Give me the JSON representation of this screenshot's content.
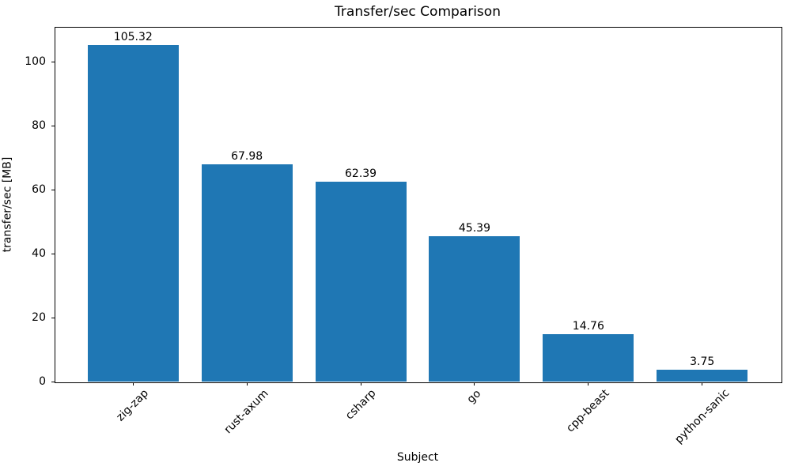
{
  "chart_data": {
    "type": "bar",
    "title": "Transfer/sec Comparison",
    "xlabel": "Subject",
    "ylabel": "transfer/sec [MB]",
    "categories": [
      "zig-zap",
      "rust-axum",
      "csharp",
      "go",
      "cpp-beast",
      "python-sanic"
    ],
    "values": [
      105.32,
      67.98,
      62.39,
      45.39,
      14.76,
      3.75
    ],
    "value_labels": [
      "105.32",
      "67.98",
      "62.39",
      "45.39",
      "14.76",
      "3.75"
    ],
    "yticks": [
      0,
      20,
      40,
      60,
      80,
      100
    ],
    "ytick_labels": [
      "0",
      "20",
      "40",
      "60",
      "80",
      "100"
    ],
    "ylim": [
      0,
      110.9
    ],
    "xtick_rotation_deg": 45,
    "bar_color": "#1f77b4",
    "axis_color": "#000000",
    "grid": false,
    "legend_position": "none"
  }
}
